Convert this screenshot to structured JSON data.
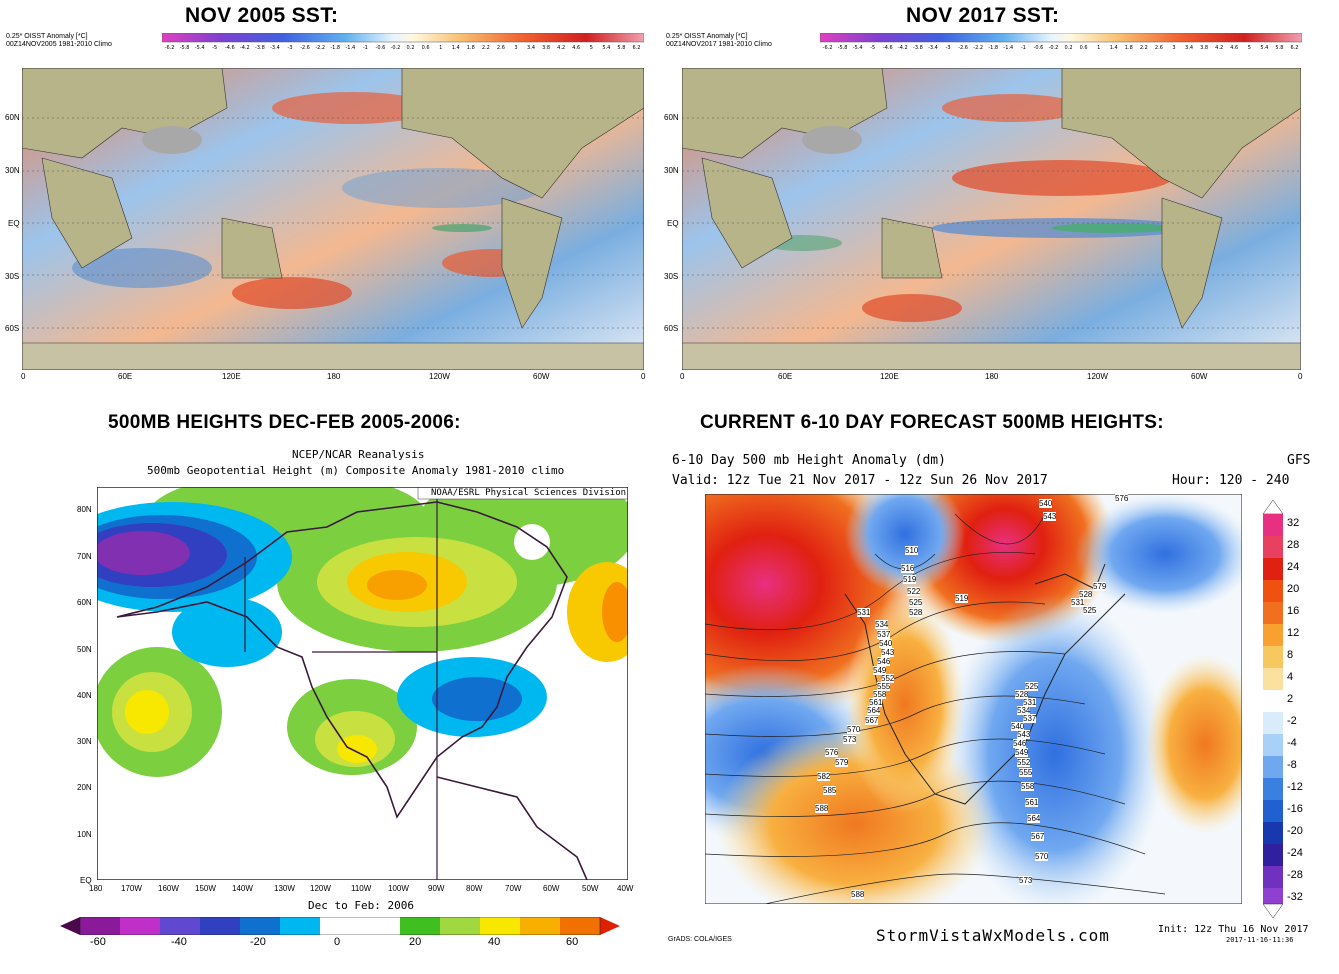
{
  "panels": {
    "tl": {
      "title": "NOV  2005 SST:",
      "header1": "0.25* OISST Anomaly [*C]",
      "header2": "00Z14NOV2005 1981-2010 Climo",
      "lat_labels": [
        "60N",
        "30N",
        "EQ",
        "30S",
        "60S"
      ],
      "lon_labels": [
        "0",
        "60E",
        "120E",
        "180",
        "120W",
        "60W",
        "0"
      ]
    },
    "tr": {
      "title": "NOV 2017 SST:",
      "header1": "0.25* OISST Anomaly [*C]",
      "header2": "00Z14NOV2017 1981-2010 Climo",
      "lat_labels": [
        "60N",
        "30N",
        "EQ",
        "30S",
        "60S"
      ],
      "lon_labels": [
        "0",
        "60E",
        "120E",
        "180",
        "120W",
        "60W",
        "0"
      ]
    },
    "sst_scale": [
      "-6.2",
      "-5.8",
      "-5.4",
      "-5",
      "-4.6",
      "-4.2",
      "-3.8",
      "-3.4",
      "-3",
      "-2.6",
      "-2.2",
      "-1.8",
      "-1.4",
      "-1",
      "-0.6",
      "-0.2",
      "0.2",
      "0.6",
      "1",
      "1.4",
      "1.8",
      "2.2",
      "2.6",
      "3",
      "3.4",
      "3.8",
      "4.2",
      "4.6",
      "5",
      "5.4",
      "5.8",
      "6.2"
    ],
    "bl": {
      "title": "500MB HEIGHTS DEC-FEB 2005-2006:",
      "header1": "NCEP/NCAR Reanalysis",
      "header2": "500mb Geopotential Height (m) Composite Anomaly 1981-2010 climo",
      "credit": "NOAA/ESRL Physical Sciences Division",
      "footer": "Dec to Feb: 2006",
      "lat_labels": [
        "80N",
        "70N",
        "60N",
        "50N",
        "40N",
        "30N",
        "20N",
        "10N",
        "EQ"
      ],
      "lon_labels": [
        "180",
        "170W",
        "160W",
        "150W",
        "140W",
        "130W",
        "120W",
        "110W",
        "100W",
        "90W",
        "80W",
        "70W",
        "60W",
        "50W",
        "40W"
      ],
      "scale_labels": [
        "-60",
        "-40",
        "-20",
        "0",
        "20",
        "40",
        "60"
      ]
    },
    "br": {
      "title": "CURRENT 6-10 DAY FORECAST 500MB HEIGHTS:",
      "header1": "6-10 Day 500 mb Height Anomaly (dm)",
      "model": "GFS",
      "valid": "Valid: 12z Tue 21 Nov 2017 - 12z Sun 26 Nov 2017",
      "hour": "Hour: 120 - 240",
      "grads": "GrADS: COLA/IGES",
      "site": "StormVistaWxModels.com",
      "init": "Init: 12z Thu 16 Nov 2017",
      "stamp": "2017-11-16-11:36",
      "scale_labels": [
        "32",
        "28",
        "24",
        "20",
        "16",
        "12",
        "8",
        "4",
        "2",
        "-2",
        "-4",
        "-8",
        "-12",
        "-16",
        "-20",
        "-24",
        "-28",
        "-32"
      ],
      "contour_labels": [
        "540",
        "543",
        "510",
        "516",
        "519",
        "522",
        "525",
        "528",
        "531",
        "534",
        "537",
        "540",
        "543",
        "546",
        "549",
        "552",
        "555",
        "558",
        "561",
        "564",
        "567",
        "570",
        "573",
        "576",
        "579",
        "582",
        "585",
        "588",
        "588",
        "525",
        "528",
        "531",
        "534",
        "537",
        "540",
        "543",
        "546",
        "549",
        "552",
        "555",
        "558",
        "561",
        "564",
        "567",
        "570",
        "573",
        "576",
        "579",
        "528",
        "531",
        "525",
        "519",
        "534"
      ]
    }
  },
  "colors": {
    "land": "#b8b48a",
    "ocean_warm": "#e8603a",
    "ocean_cool": "#6aa0d8",
    "frame": "#333333"
  }
}
